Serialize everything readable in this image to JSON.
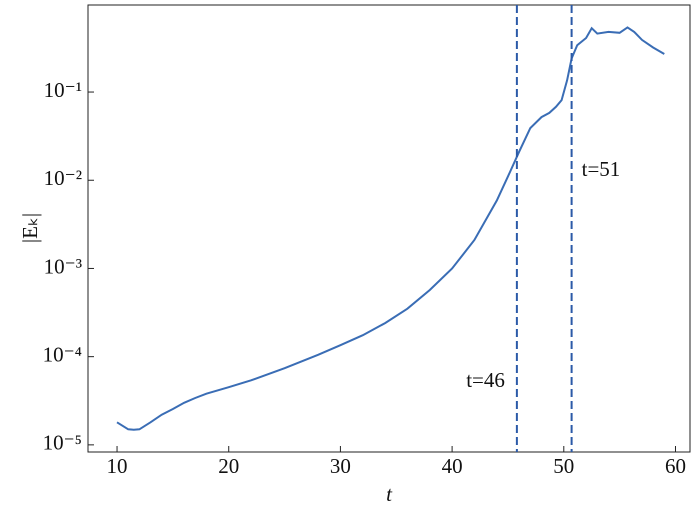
{
  "chart_data": {
    "type": "line",
    "x_label": "t",
    "y_label": "|Eₖ|",
    "x": [
      10,
      11,
      11.5,
      12,
      13,
      14,
      15,
      16,
      17,
      18,
      20,
      22,
      25,
      28,
      30,
      32,
      34,
      36,
      38,
      40,
      42,
      44,
      45,
      46,
      47,
      48,
      48.7,
      49.3,
      49.8,
      50.3,
      50.7,
      51.2,
      52,
      52.5,
      53,
      54,
      55,
      55.7,
      56.3,
      57,
      58,
      59
    ],
    "series": [
      {
        "color": "#3a6db5",
        "values": [
          1.8e-05,
          1.5e-05,
          1.48e-05,
          1.5e-05,
          1.8e-05,
          2.2e-05,
          2.55e-05,
          3e-05,
          3.4e-05,
          3.8e-05,
          4.5e-05,
          5.4e-05,
          7.4e-05,
          0.000105,
          0.000135,
          0.000175,
          0.00024,
          0.00035,
          0.00057,
          0.001,
          0.0021,
          0.0059,
          0.011,
          0.021,
          0.039,
          0.052,
          0.058,
          0.068,
          0.081,
          0.136,
          0.24,
          0.34,
          0.41,
          0.53,
          0.46,
          0.48,
          0.47,
          0.54,
          0.48,
          0.39,
          0.32,
          0.27
        ]
      }
    ],
    "xlim": [
      7.4,
      61.3
    ],
    "xticks": [
      10,
      20,
      30,
      40,
      50,
      60
    ],
    "ylim": [
      8.3e-06,
      0.97
    ],
    "log_y": true,
    "yticks": [
      {
        "value": 1e-05,
        "label": "10⁻⁵"
      },
      {
        "value": 0.0001,
        "label": "10⁻⁴"
      },
      {
        "value": 0.001,
        "label": "10⁻³"
      },
      {
        "value": 0.01,
        "label": "10⁻²"
      },
      {
        "value": 0.1,
        "label": "10⁻¹"
      }
    ],
    "vlines": [
      {
        "x": 45.8,
        "text": "t=46",
        "color": "#2b5aa8"
      },
      {
        "x": 50.7,
        "text": "t=51",
        "color": "#2b5aa8"
      }
    ]
  }
}
